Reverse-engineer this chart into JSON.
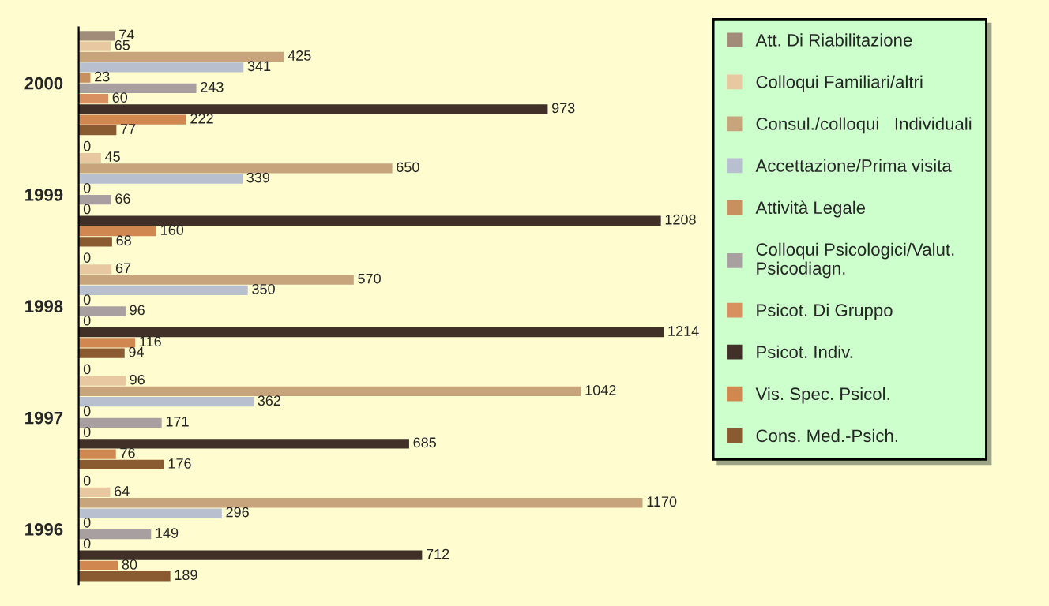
{
  "chart_data": {
    "type": "bar",
    "orientation": "horizontal",
    "categories": [
      "2000",
      "1999",
      "1998",
      "1997",
      "1996"
    ],
    "series": [
      {
        "name": "Att. Di Riabilitazione",
        "color": "#a08c78",
        "values": [
          74,
          0,
          0,
          0,
          0
        ]
      },
      {
        "name": "Colloqui Familiari/altri",
        "color": "#e8c8a0",
        "values": [
          65,
          45,
          67,
          96,
          64
        ]
      },
      {
        "name": "Consul./colloqui   Individuali",
        "color": "#c8a47c",
        "values": [
          425,
          650,
          570,
          1042,
          1170
        ]
      },
      {
        "name": "Accettazione/Prima visita",
        "color": "#b8c0d0",
        "values": [
          341,
          339,
          350,
          362,
          296
        ]
      },
      {
        "name": "Attività Legale",
        "color": "#c89060",
        "values": [
          23,
          0,
          0,
          0,
          0
        ]
      },
      {
        "name": "Colloqui Psicologici/Valut.\nPsicodiagn.",
        "color": "#a8a0a0",
        "values": [
          243,
          66,
          96,
          171,
          149
        ]
      },
      {
        "name": "Psicot. Di Gruppo",
        "color": "#d89060",
        "values": [
          60,
          0,
          0,
          0,
          0
        ]
      },
      {
        "name": "Psicot. Indiv.",
        "color": "#403028",
        "values": [
          973,
          1208,
          1214,
          685,
          712
        ]
      },
      {
        "name": "Vis. Spec. Psicol.",
        "color": "#d08850",
        "values": [
          222,
          160,
          116,
          76,
          80
        ]
      },
      {
        "name": "Cons. Med.-Psich.",
        "color": "#8a5a30",
        "values": [
          77,
          68,
          94,
          176,
          189
        ]
      }
    ],
    "data_labels": true,
    "legend": "right",
    "grid": false,
    "tick_labels": "y"
  }
}
